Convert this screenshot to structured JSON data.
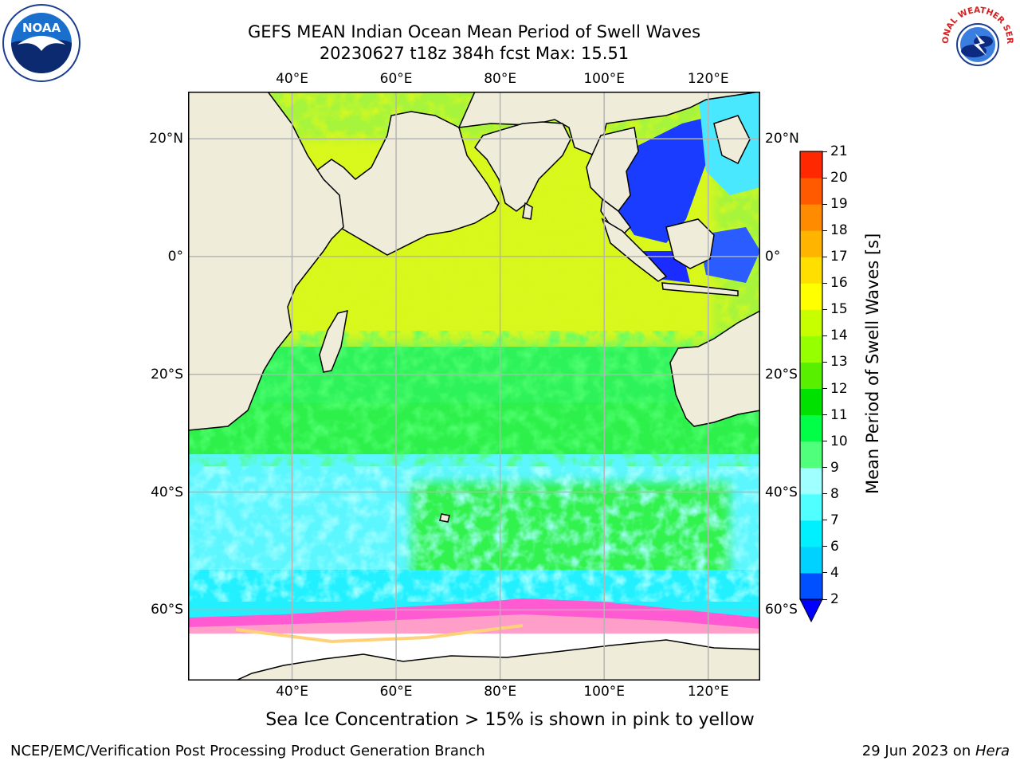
{
  "title": {
    "line1": "GEFS MEAN Indian Ocean Mean Period of Swell Waves",
    "line2": "20230627 t18z 384h fcst   Max: 15.51"
  },
  "map": {
    "lon_range": [
      20,
      130
    ],
    "lat_range": [
      -72,
      28
    ],
    "lon_ticks": [
      {
        "value": 40,
        "label": "40°E"
      },
      {
        "value": 60,
        "label": "60°E"
      },
      {
        "value": 80,
        "label": "80°E"
      },
      {
        "value": 100,
        "label": "100°E"
      },
      {
        "value": 120,
        "label": "120°E"
      }
    ],
    "lat_ticks": [
      {
        "value": 20,
        "label": "20°N"
      },
      {
        "value": 0,
        "label": "0°"
      },
      {
        "value": -20,
        "label": "20°S"
      },
      {
        "value": -40,
        "label": "40°S"
      },
      {
        "value": -60,
        "label": "60°S"
      }
    ],
    "grid": true,
    "land_color": "#efedda",
    "ice_colors": [
      "#ff5ad2",
      "#ff9ec8",
      "#ffd27a"
    ]
  },
  "colorbar": {
    "label": "Mean Period of Swell Waves [s]",
    "levels": [
      2,
      4,
      6,
      7,
      8,
      9,
      10,
      11,
      12,
      13,
      14,
      15,
      16,
      17,
      18,
      19,
      20,
      21
    ],
    "tick_labels": [
      "2",
      "4",
      "6",
      "7",
      "8",
      "9",
      "10",
      "11",
      "12",
      "13",
      "14",
      "15",
      "16",
      "17",
      "18",
      "19",
      "20",
      "21"
    ],
    "colors": [
      "#0050ff",
      "#00d2ff",
      "#00f0ff",
      "#50ffff",
      "#a0ffff",
      "#50ff7c",
      "#00ff46",
      "#00e100",
      "#58f000",
      "#96ff00",
      "#c8ff00",
      "#ffff00",
      "#ffdf00",
      "#ffb400",
      "#ff8c00",
      "#ff5a00",
      "#ff2800",
      "#ff0000"
    ],
    "extend_color": "#0000ff"
  },
  "footer": {
    "left": "NCEP/EMC/Verification Post Processing Product Generation Branch",
    "right_prefix": "29 Jun 2023 on ",
    "right_host": "Hera"
  },
  "note": "Sea Ice Concentration > 15% is shown in pink to yellow",
  "logos": {
    "noaa_text": "NOAA",
    "nws_text": "NATIONAL WEATHER SERVICE"
  }
}
